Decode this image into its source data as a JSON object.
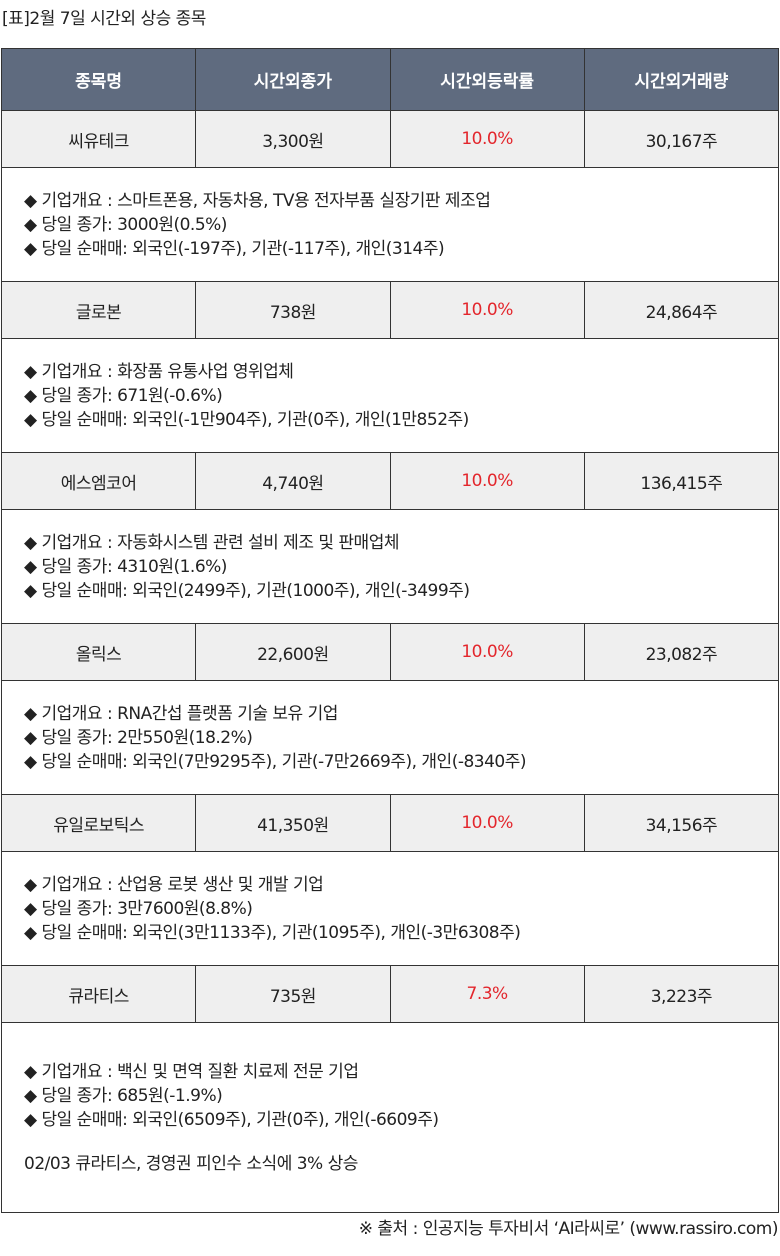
{
  "title": "[표]2월 7일 시간외 상승 종목",
  "headers": [
    "종목명",
    "시간외종가",
    "시간외등락률",
    "시간외거래량"
  ],
  "accent_red": "#e3262c",
  "header_bg": "#5f6b7f",
  "rows": [
    {
      "name": "씨유테크",
      "close": "3,300원",
      "change": "10.0%",
      "volume": "30,167주",
      "lines": [
        "◆ 기업개요 : 스마트폰용, 자동차용, TV용 전자부품 실장기판 제조업",
        "◆ 당일 종가: 3000원(0.5%)",
        "◆ 당일 순매매: 외국인(-197주), 기관(-117주), 개인(314주)"
      ]
    },
    {
      "name": "글로본",
      "close": "738원",
      "change": "10.0%",
      "volume": "24,864주",
      "lines": [
        "◆ 기업개요 : 화장품 유통사업 영위업체",
        "◆ 당일 종가: 671원(-0.6%)",
        "◆ 당일 순매매: 외국인(-1만904주), 기관(0주), 개인(1만852주)"
      ]
    },
    {
      "name": "에스엠코어",
      "close": "4,740원",
      "change": "10.0%",
      "volume": "136,415주",
      "lines": [
        "◆ 기업개요 : 자동화시스템 관련 설비 제조 및 판매업체",
        "◆ 당일 종가: 4310원(1.6%)",
        "◆ 당일 순매매: 외국인(2499주), 기관(1000주), 개인(-3499주)"
      ]
    },
    {
      "name": "올릭스",
      "close": "22,600원",
      "change": "10.0%",
      "volume": "23,082주",
      "lines": [
        "◆ 기업개요 : RNA간섭 플랫폼 기술 보유 기업",
        "◆ 당일 종가: 2만550원(18.2%)",
        "◆ 당일 순매매: 외국인(7만9295주), 기관(-7만2669주), 개인(-8340주)"
      ]
    },
    {
      "name": "유일로보틱스",
      "close": "41,350원",
      "change": "10.0%",
      "volume": "34,156주",
      "lines": [
        "◆ 기업개요 : 산업용 로봇 생산 및 개발 기업",
        "◆ 당일 종가: 3만7600원(8.8%)",
        "◆ 당일 순매매: 외국인(3만1133주), 기관(1095주), 개인(-3만6308주)"
      ]
    },
    {
      "name": "큐라티스",
      "close": "735원",
      "change": "7.3%",
      "volume": "3,223주",
      "lines": [
        "◆ 기업개요 : 백신 및 면역 질환 치료제 전문 기업",
        "◆ 당일 종가: 685원(-1.9%)",
        "◆ 당일 순매매: 외국인(6509주), 기관(0주), 개인(-6609주)"
      ],
      "news": "02/03 큐라티스, 경영권 피인수 소식에 3% 상승"
    }
  ],
  "footer": "※ 출처 : 인공지능 투자비서 ‘AI라씨로’ (www.rassiro.com)"
}
